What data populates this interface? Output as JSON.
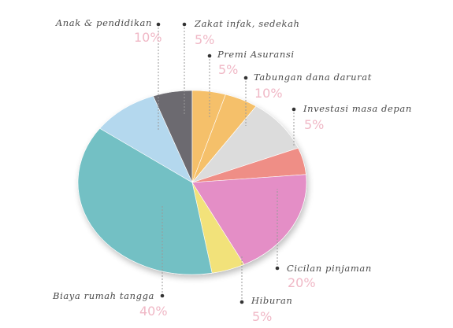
{
  "chart_data": {
    "type": "pie",
    "title": "",
    "slices": [
      {
        "label": "Zakat infak, sedekah",
        "value": 5,
        "display": "5%",
        "color": "#f5c06a"
      },
      {
        "label": "Premi Asuransi",
        "value": 5,
        "display": "5%",
        "color": "#f5c06a"
      },
      {
        "label": "Tabungan dana darurat",
        "value": 10,
        "display": "10%",
        "color": "#dcdcdc"
      },
      {
        "label": "Investasi masa depan",
        "value": 5,
        "display": "5%",
        "color": "#ef8e86"
      },
      {
        "label": "Cicilan pinjaman",
        "value": 20,
        "display": "20%",
        "color": "#e48ec6"
      },
      {
        "label": "Hiburan",
        "value": 5,
        "display": "5%",
        "color": "#f2e27a"
      },
      {
        "label": "Biaya rumah tangga",
        "value": 40,
        "display": "40%",
        "color": "#73c0c4"
      },
      {
        "label": "Anak & pendidikan",
        "value": 10,
        "display": "10%",
        "color": "#b4d8ee"
      }
    ],
    "dark_wedge_color": "#6c6b70",
    "legend": "none"
  }
}
